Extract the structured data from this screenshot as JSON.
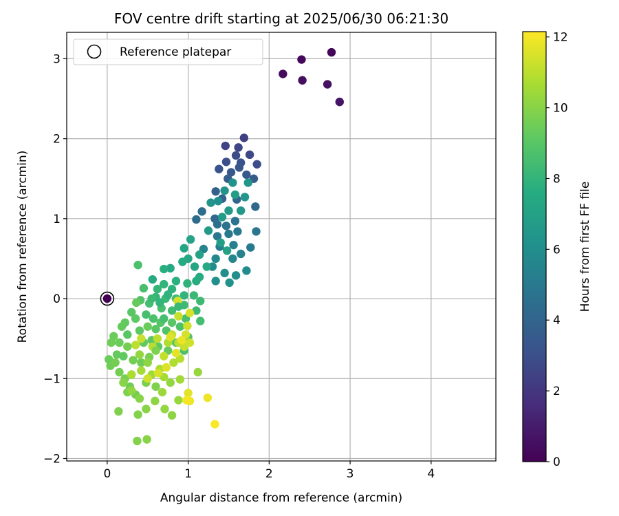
{
  "chart_data": {
    "type": "scatter",
    "title": "FOV centre drift starting at 2025/06/30 06:21:30",
    "xlabel": "Angular distance from reference (arcmin)",
    "ylabel": "Rotation from reference (arcmin)",
    "xlim": [
      -0.5,
      4.8
    ],
    "ylim": [
      -2.03,
      3.33
    ],
    "xticks": [
      0,
      1,
      2,
      3,
      4
    ],
    "xtick_labels": [
      "0",
      "1",
      "2",
      "3",
      "4"
    ],
    "yticks": [
      -2,
      -1,
      0,
      1,
      2,
      3
    ],
    "ytick_labels": [
      "−2",
      "−1",
      "0",
      "1",
      "2",
      "3"
    ],
    "grid": true,
    "legend": {
      "position": "top-left",
      "entries": [
        "Reference platepar"
      ]
    },
    "colorbar": {
      "label": "Hours from first FF file",
      "colormap": "viridis",
      "range": [
        0,
        12.15
      ],
      "ticks": [
        0,
        2,
        4,
        6,
        8,
        10,
        12
      ],
      "tick_labels": [
        "0",
        "2",
        "4",
        "6",
        "8",
        "10",
        "12"
      ]
    },
    "reference_point": {
      "label": "Reference platepar",
      "x": 0,
      "y": 0
    },
    "series": [
      {
        "points": [
          [
            2.77,
            3.08,
            0.2
          ],
          [
            2.4,
            2.99,
            0.3
          ],
          [
            2.17,
            2.81,
            0.4
          ],
          [
            2.41,
            2.73,
            0.5
          ],
          [
            2.72,
            2.68,
            0.6
          ],
          [
            2.87,
            2.46,
            0.7
          ],
          [
            1.69,
            2.01,
            2.4
          ],
          [
            1.46,
            1.91,
            2.5
          ],
          [
            1.62,
            1.89,
            2.6
          ],
          [
            1.76,
            1.8,
            2.7
          ],
          [
            1.59,
            1.79,
            2.8
          ],
          [
            1.85,
            1.68,
            2.9
          ],
          [
            1.47,
            1.71,
            3.0
          ],
          [
            1.65,
            1.7,
            3.1
          ],
          [
            1.38,
            1.62,
            3.2
          ],
          [
            1.63,
            1.64,
            3.3
          ],
          [
            1.53,
            1.58,
            3.4
          ],
          [
            1.72,
            1.55,
            3.5
          ],
          [
            1.81,
            1.5,
            3.6
          ],
          [
            1.49,
            1.5,
            3.7
          ],
          [
            1.34,
            1.34,
            3.8
          ],
          [
            1.42,
            1.25,
            3.9
          ],
          [
            1.6,
            1.24,
            4.0
          ],
          [
            1.83,
            1.15,
            4.1
          ],
          [
            1.33,
            1.0,
            4.2
          ],
          [
            1.1,
            0.99,
            4.3
          ],
          [
            1.17,
            1.09,
            4.4
          ],
          [
            1.36,
            0.93,
            4.5
          ],
          [
            1.47,
            0.91,
            4.6
          ],
          [
            1.58,
            0.97,
            4.7
          ],
          [
            1.84,
            0.84,
            4.8
          ],
          [
            1.36,
            0.78,
            4.9
          ],
          [
            1.5,
            0.81,
            5.0
          ],
          [
            1.61,
            0.84,
            5.0
          ],
          [
            1.77,
            0.64,
            5.1
          ],
          [
            1.39,
            0.65,
            5.2
          ],
          [
            1.56,
            0.67,
            5.3
          ],
          [
            1.65,
            0.56,
            5.4
          ],
          [
            1.19,
            0.62,
            5.5
          ],
          [
            1.55,
            0.5,
            5.6
          ],
          [
            1.34,
            0.5,
            5.7
          ],
          [
            1.3,
            0.4,
            5.8
          ],
          [
            1.72,
            0.35,
            5.9
          ],
          [
            1.45,
            0.32,
            6.0
          ],
          [
            1.59,
            0.29,
            6.0
          ],
          [
            1.34,
            0.22,
            6.1
          ],
          [
            1.51,
            0.2,
            6.2
          ],
          [
            1.37,
            1.22,
            6.0
          ],
          [
            1.45,
            1.35,
            6.3
          ],
          [
            1.55,
            1.45,
            6.2
          ],
          [
            1.7,
            1.27,
            6.4
          ],
          [
            1.65,
            1.1,
            6.5
          ],
          [
            1.5,
            1.1,
            6.6
          ],
          [
            1.42,
            1.02,
            6.7
          ],
          [
            1.28,
            1.2,
            6.3
          ],
          [
            1.74,
            1.45,
            6.4
          ],
          [
            1.58,
            1.3,
            6.8
          ],
          [
            1.4,
            0.7,
            6.9
          ],
          [
            1.48,
            0.6,
            7.0
          ],
          [
            1.25,
            0.85,
            6.6
          ],
          [
            1.03,
            0.74,
            7.1
          ],
          [
            0.95,
            0.63,
            7.2
          ],
          [
            1.14,
            0.55,
            7.0
          ],
          [
            1.0,
            0.5,
            7.3
          ],
          [
            1.23,
            0.4,
            7.4
          ],
          [
            0.93,
            0.46,
            7.5
          ],
          [
            1.08,
            0.4,
            7.2
          ],
          [
            1.14,
            0.27,
            7.6
          ],
          [
            0.78,
            0.38,
            7.4
          ],
          [
            0.7,
            0.37,
            7.7
          ],
          [
            0.56,
            0.24,
            7.5
          ],
          [
            0.85,
            0.22,
            7.8
          ],
          [
            0.99,
            0.19,
            7.9
          ],
          [
            1.1,
            0.22,
            7.6
          ],
          [
            0.7,
            0.18,
            8.0
          ],
          [
            0.62,
            0.12,
            8.1
          ],
          [
            0.8,
            0.12,
            7.9
          ],
          [
            0.95,
            0.04,
            8.0
          ],
          [
            1.07,
            0.04,
            8.2
          ],
          [
            1.15,
            -0.03,
            8.3
          ],
          [
            0.6,
            0.02,
            8.1
          ],
          [
            0.72,
            0.0,
            8.2
          ],
          [
            0.85,
            0.0,
            8.4
          ],
          [
            0.95,
            -0.08,
            8.3
          ],
          [
            0.52,
            -0.06,
            8.5
          ],
          [
            0.67,
            -0.12,
            8.6
          ],
          [
            0.8,
            -0.15,
            8.4
          ],
          [
            1.1,
            -0.15,
            8.3
          ],
          [
            1.15,
            -0.28,
            8.5
          ],
          [
            0.38,
            0.42,
            8.7
          ],
          [
            0.41,
            -0.02,
            8.8
          ],
          [
            0.48,
            -0.2,
            8.6
          ],
          [
            0.57,
            -0.25,
            8.7
          ],
          [
            0.66,
            -0.3,
            8.9
          ],
          [
            0.73,
            -0.4,
            8.8
          ],
          [
            0.9,
            -0.35,
            8.7
          ],
          [
            0.97,
            -0.25,
            8.6
          ],
          [
            1.0,
            -0.48,
            8.8
          ],
          [
            0.85,
            -0.55,
            8.9
          ],
          [
            0.95,
            -0.65,
            8.7
          ],
          [
            0.3,
            -0.17,
            9.0
          ],
          [
            0.35,
            -0.25,
            9.1
          ],
          [
            0.22,
            -0.3,
            9.2
          ],
          [
            0.18,
            -0.35,
            9.3
          ],
          [
            0.25,
            -0.45,
            9.0
          ],
          [
            0.4,
            -0.4,
            9.1
          ],
          [
            0.45,
            -0.55,
            9.2
          ],
          [
            0.55,
            -0.52,
            9.0
          ],
          [
            0.63,
            -0.6,
            9.1
          ],
          [
            0.75,
            -0.65,
            9.3
          ],
          [
            0.08,
            -0.47,
            9.4
          ],
          [
            0.05,
            -0.55,
            9.5
          ],
          [
            0.12,
            -0.7,
            9.3
          ],
          [
            0.02,
            -0.76,
            9.4
          ],
          [
            0.04,
            -0.84,
            9.5
          ],
          [
            0.2,
            -0.72,
            9.2
          ],
          [
            0.32,
            -0.77,
            9.6
          ],
          [
            0.42,
            -0.8,
            9.5
          ],
          [
            0.52,
            -0.73,
            9.7
          ],
          [
            0.15,
            -0.92,
            9.6
          ],
          [
            0.22,
            -1.0,
            9.7
          ],
          [
            0.28,
            -1.1,
            9.5
          ],
          [
            0.25,
            -1.17,
            9.8
          ],
          [
            0.35,
            -1.2,
            9.6
          ],
          [
            0.48,
            -1.05,
            9.7
          ],
          [
            0.6,
            -1.1,
            9.8
          ],
          [
            0.38,
            -1.45,
            9.9
          ],
          [
            0.14,
            -1.41,
            9.8
          ],
          [
            0.37,
            -1.78,
            9.9
          ],
          [
            0.49,
            -1.76,
            10.0
          ],
          [
            0.48,
            -1.38,
            10.0
          ],
          [
            0.59,
            -1.28,
            10.1
          ],
          [
            0.71,
            -1.38,
            10.2
          ],
          [
            0.8,
            -1.46,
            10.1
          ],
          [
            0.88,
            -1.27,
            10.3
          ],
          [
            0.4,
            -1.25,
            10.0
          ],
          [
            0.68,
            -1.17,
            10.4
          ],
          [
            0.78,
            -1.05,
            10.2
          ],
          [
            0.9,
            -1.01,
            10.5
          ],
          [
            1.12,
            -0.92,
            10.3
          ],
          [
            0.3,
            -0.95,
            10.4
          ],
          [
            0.42,
            -0.9,
            10.6
          ],
          [
            0.55,
            -0.95,
            10.5
          ],
          [
            0.65,
            -0.88,
            10.7
          ],
          [
            0.7,
            -0.98,
            10.6
          ],
          [
            0.82,
            -0.8,
            10.8
          ],
          [
            0.9,
            -0.75,
            10.9
          ],
          [
            0.75,
            -0.55,
            10.8
          ],
          [
            0.62,
            -0.5,
            11.0
          ],
          [
            0.56,
            -0.6,
            10.9
          ],
          [
            0.7,
            -0.72,
            11.1
          ],
          [
            0.88,
            -0.55,
            11.0
          ],
          [
            0.95,
            -0.6,
            11.2
          ],
          [
            1.02,
            -0.55,
            11.3
          ],
          [
            0.8,
            -0.45,
            11.1
          ],
          [
            0.88,
            -0.22,
            11.2
          ],
          [
            0.97,
            -0.45,
            11.4
          ],
          [
            0.99,
            -0.34,
            11.3
          ],
          [
            1.02,
            -0.18,
            11.5
          ],
          [
            0.87,
            -0.03,
            11.4
          ],
          [
            0.42,
            -0.5,
            11.2
          ],
          [
            0.35,
            -0.58,
            11.0
          ],
          [
            0.3,
            -0.95,
            10.7
          ],
          [
            0.5,
            -1.0,
            11.3
          ],
          [
            0.63,
            -0.93,
            11.5
          ],
          [
            0.73,
            -0.86,
            11.6
          ],
          [
            0.85,
            -0.68,
            11.7
          ],
          [
            0.78,
            -0.48,
            11.6
          ],
          [
            0.92,
            -0.52,
            11.8
          ],
          [
            1.0,
            -1.18,
            11.7
          ],
          [
            1.02,
            -1.28,
            11.9
          ],
          [
            0.98,
            -1.27,
            12.0
          ],
          [
            1.24,
            -1.24,
            11.9
          ],
          [
            1.33,
            -1.57,
            12.1
          ],
          [
            0.36,
            -0.05,
            9.3
          ],
          [
            0.45,
            0.13,
            8.6
          ],
          [
            0.55,
            0.0,
            8.3
          ],
          [
            0.65,
            -0.05,
            8.0
          ],
          [
            0.75,
            0.05,
            7.9
          ],
          [
            0.5,
            -0.35,
            9.4
          ],
          [
            0.6,
            -0.38,
            9.0
          ],
          [
            0.7,
            -0.25,
            8.5
          ],
          [
            0.8,
            -0.3,
            9.0
          ],
          [
            0.88,
            -0.1,
            8.2
          ],
          [
            0.6,
            -0.65,
            9.8
          ],
          [
            0.5,
            -0.8,
            10.1
          ],
          [
            0.4,
            -0.7,
            10.2
          ],
          [
            0.25,
            -0.6,
            9.6
          ],
          [
            0.15,
            -0.55,
            9.4
          ],
          [
            0.1,
            -0.8,
            9.6
          ],
          [
            0.2,
            -1.05,
            10.0
          ],
          [
            0.3,
            -1.15,
            10.2
          ]
        ]
      }
    ]
  }
}
